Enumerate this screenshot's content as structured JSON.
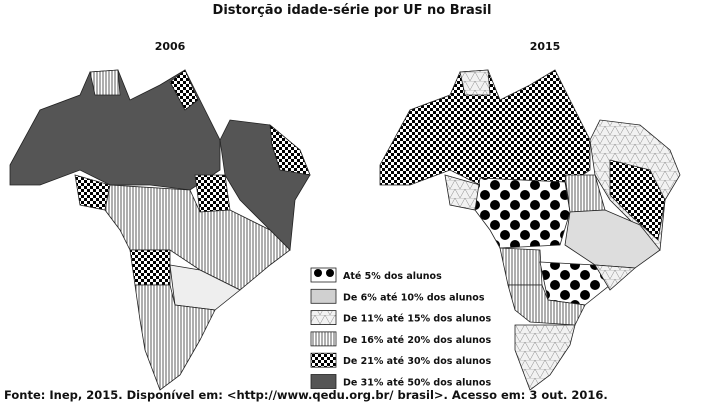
{
  "title": "Distorção idade-série por UF no Brasil",
  "maps": [
    {
      "label": "2006"
    },
    {
      "label": "2015"
    }
  ],
  "legend": [
    {
      "label": "Até 5% dos alunos"
    },
    {
      "label": "De 6% até 10% dos alunos"
    },
    {
      "label": "De 11% até 15% dos alunos"
    },
    {
      "label": "De 16% até 20% dos alunos"
    },
    {
      "label": "De 21% até 30% dos alunos"
    },
    {
      "label": "De 31% até 50% dos alunos"
    }
  ],
  "source": "Fonte: Inep, 2015.  Disponível em: <http://www.qedu.org.br/ brasil>. Acesso em: 3 out. 2016."
}
